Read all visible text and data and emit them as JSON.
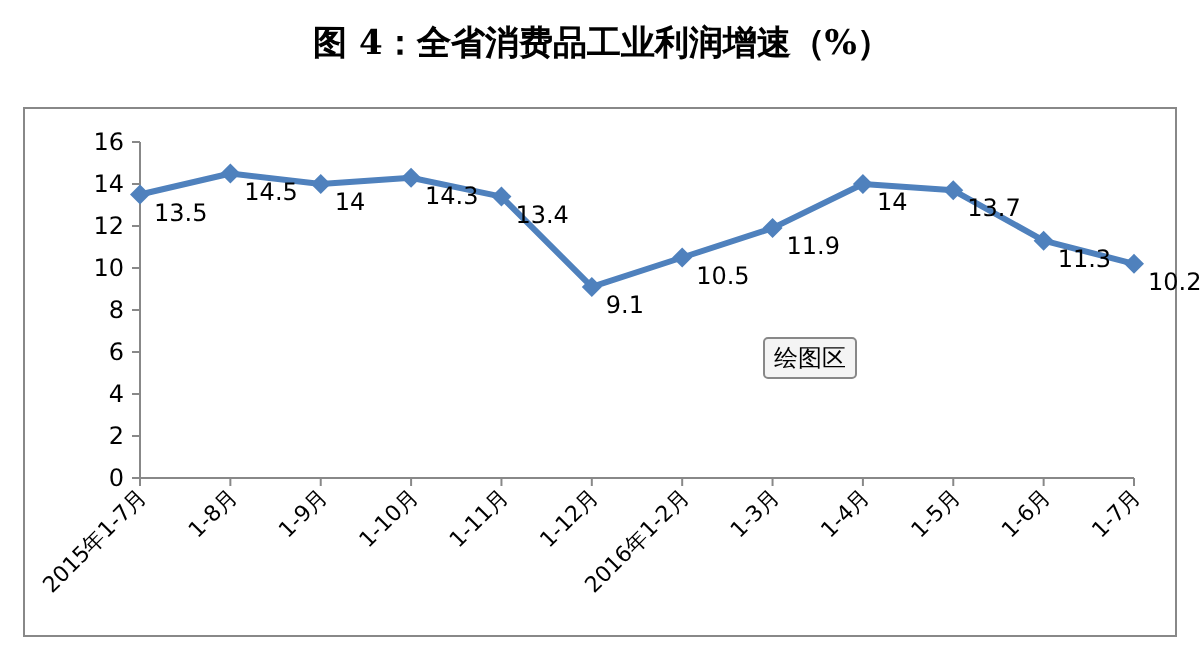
{
  "chart_data": {
    "type": "line",
    "title": "图 4：全省消费品工业利润增速（%）",
    "categories": [
      "2015年1-7月",
      "1-8月",
      "1-9月",
      "1-10月",
      "1-11月",
      "1-12月",
      "2016年1-2月",
      "1-3月",
      "1-4月",
      "1-5月",
      "1-6月",
      "1-7月"
    ],
    "series": [
      {
        "color": "#4f81bd",
        "values": [
          13.5,
          14.5,
          14,
          14.3,
          13.4,
          9.1,
          10.5,
          11.9,
          14,
          13.7,
          11.3,
          10.2
        ]
      }
    ],
    "ylim": [
      0,
      16
    ],
    "yticks": [
      0,
      2,
      4,
      6,
      8,
      10,
      12,
      14,
      16
    ],
    "grid": false,
    "marker": "diamond",
    "line_style": "solid",
    "data_labels": true,
    "annotations": [
      "绘图区"
    ]
  }
}
